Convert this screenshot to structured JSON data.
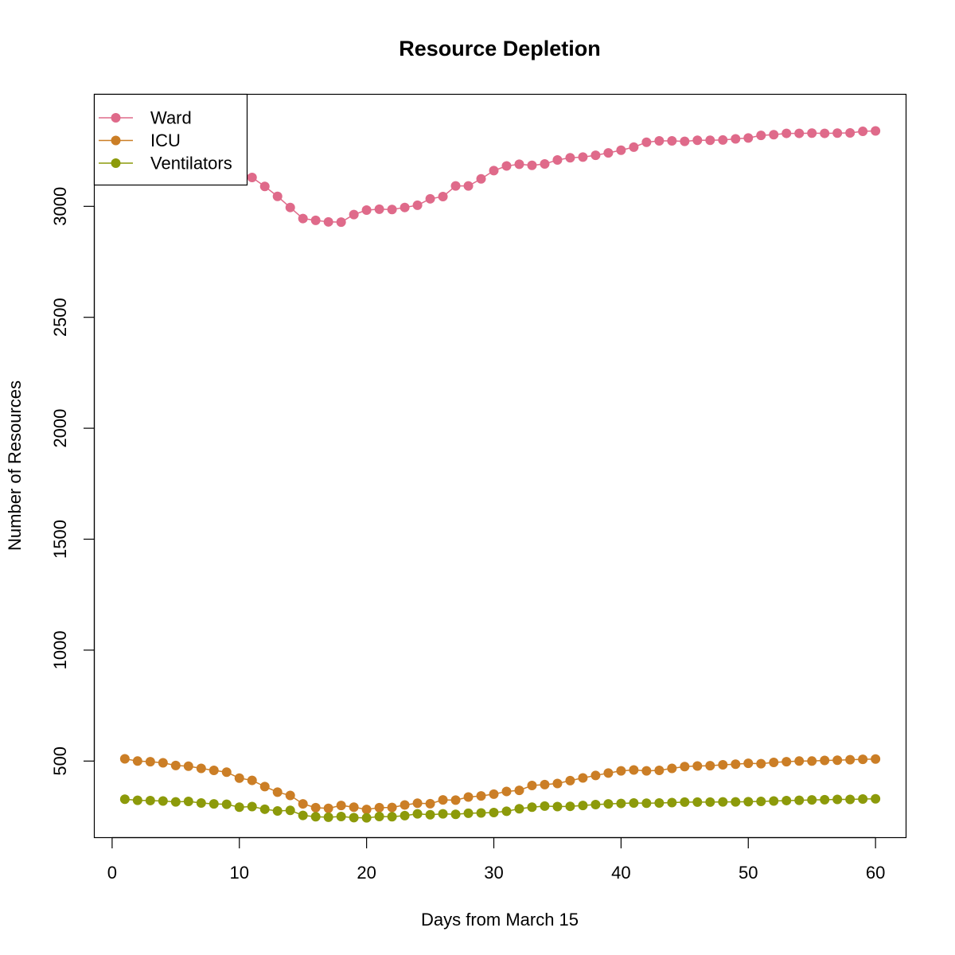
{
  "chart_data": {
    "type": "line",
    "title": "Resource Depletion",
    "xlabel": "Days from March 15",
    "ylabel": "Number of Resources",
    "xlim": [
      -1.4,
      62.4
    ],
    "ylim": [
      155,
      3505
    ],
    "x_ticks": [
      0,
      10,
      20,
      30,
      40,
      50,
      60
    ],
    "y_ticks": [
      500,
      1000,
      1500,
      2000,
      2500,
      3000
    ],
    "grid": false,
    "legend_position": "top-left",
    "x": [
      1,
      2,
      3,
      4,
      5,
      6,
      7,
      8,
      9,
      10,
      11,
      12,
      13,
      14,
      15,
      16,
      17,
      18,
      19,
      20,
      21,
      22,
      23,
      24,
      25,
      26,
      27,
      28,
      29,
      30,
      31,
      32,
      33,
      34,
      35,
      36,
      37,
      38,
      39,
      40,
      41,
      42,
      43,
      44,
      45,
      46,
      47,
      48,
      49,
      50,
      51,
      52,
      53,
      54,
      55,
      56,
      57,
      58,
      59,
      60
    ],
    "series": [
      {
        "name": "Ward",
        "color": "#DF6A8A",
        "values": [
          3420,
          3400,
          3370,
          3340,
          3310,
          3280,
          3250,
          3220,
          3190,
          3160,
          3130,
          3090,
          3045,
          2995,
          2945,
          2937,
          2930,
          2929,
          2963,
          2983,
          2987,
          2986,
          2995,
          3005,
          3034,
          3044,
          3092,
          3092,
          3124,
          3161,
          3182,
          3190,
          3185,
          3191,
          3209,
          3219,
          3222,
          3230,
          3241,
          3253,
          3267,
          3289,
          3295,
          3295,
          3293,
          3298,
          3298,
          3299,
          3304,
          3308,
          3320,
          3323,
          3329,
          3329,
          3330,
          3329,
          3330,
          3331,
          3338,
          3340
        ]
      },
      {
        "name": "ICU",
        "color": "#CB7E26",
        "values": [
          510,
          500,
          497,
          492,
          480,
          477,
          467,
          458,
          450,
          423,
          413,
          385,
          360,
          345,
          307,
          290,
          287,
          300,
          292,
          282,
          290,
          291,
          302,
          310,
          308,
          325,
          324,
          338,
          343,
          351,
          363,
          368,
          390,
          394,
          399,
          412,
          424,
          435,
          446,
          456,
          460,
          456,
          458,
          467,
          475,
          478,
          479,
          483,
          486,
          490,
          488,
          494,
          497,
          500,
          500,
          503,
          504,
          506,
          508,
          509
        ]
      },
      {
        "name": "Ventilators",
        "color": "#8C9A0A",
        "values": [
          328,
          323,
          322,
          320,
          316,
          318,
          311,
          307,
          305,
          292,
          295,
          283,
          275,
          278,
          255,
          249,
          247,
          250,
          245,
          244,
          250,
          249,
          254,
          262,
          258,
          262,
          260,
          265,
          266,
          268,
          274,
          285,
          292,
          297,
          295,
          296,
          300,
          304,
          307,
          309,
          311,
          310,
          311,
          313,
          315,
          315,
          315,
          316,
          316,
          317,
          318,
          320,
          322,
          323,
          325,
          326,
          327,
          327,
          329,
          330
        ]
      }
    ]
  }
}
